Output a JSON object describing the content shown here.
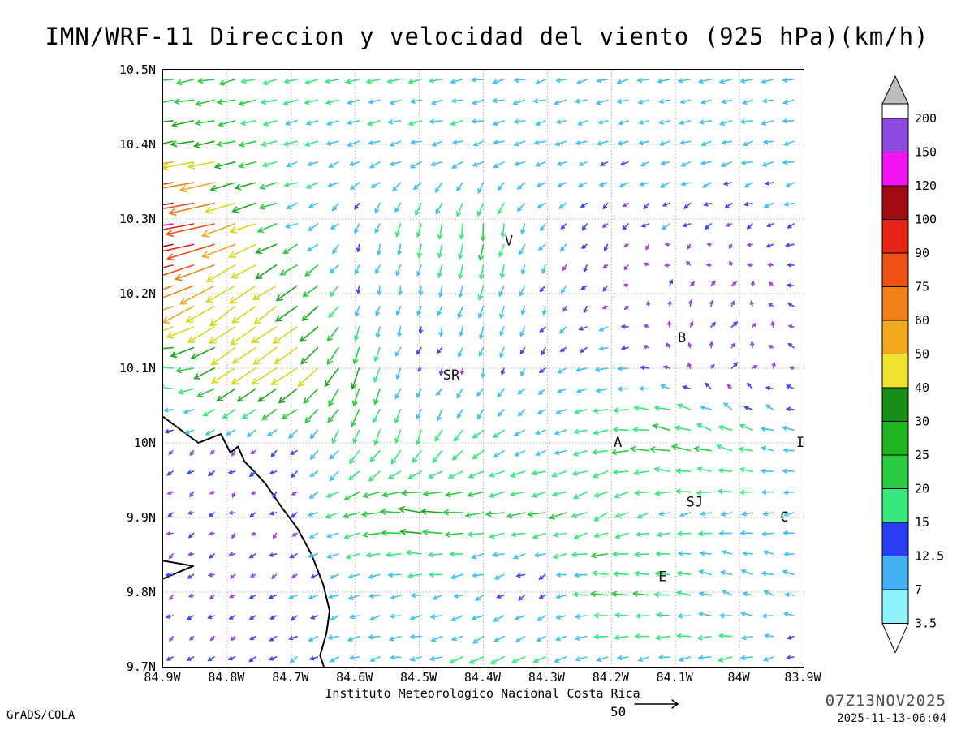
{
  "footer": {
    "institute": "Instituto Meteorologico Nacional Costa Rica",
    "credit": "GrADS/COLA",
    "valid_time": "07Z13NOV2025",
    "created": "2025-11-13-06:04",
    "ref_vector_label": "50"
  },
  "chart_data": {
    "type": "vector_field",
    "title": "IMN/WRF-11 Direccion y velocidad del viento (925 hPa)(km/h)",
    "units": "km/h",
    "level": "925 hPa",
    "lon_range": [
      -84.9,
      -83.9
    ],
    "lat_range": [
      9.7,
      10.5
    ],
    "lon_ticks": [
      "84.9W",
      "84.8W",
      "84.7W",
      "84.6W",
      "84.5W",
      "84.4W",
      "84.3W",
      "84.2W",
      "84.1W",
      "84W",
      "83.9W"
    ],
    "lat_ticks": [
      "10.5N",
      "10.4N",
      "10.3N",
      "10.2N",
      "10.1N",
      "10N",
      "9.9N",
      "9.8N",
      "9.7N"
    ],
    "grid": true,
    "reference_speed": 50,
    "stations": [
      {
        "label": "V",
        "lon": -84.36,
        "lat": 10.27
      },
      {
        "label": "B",
        "lon": -84.09,
        "lat": 10.14
      },
      {
        "label": "SR",
        "lon": -84.45,
        "lat": 10.09
      },
      {
        "label": "A",
        "lon": -84.19,
        "lat": 10.0
      },
      {
        "label": "SJ",
        "lon": -84.07,
        "lat": 9.92
      },
      {
        "label": "C",
        "lon": -83.93,
        "lat": 9.9
      },
      {
        "label": "E",
        "lon": -84.12,
        "lat": 9.82
      },
      {
        "label": "I",
        "lon": -83.9,
        "lat": 10.0
      }
    ],
    "colorbar": {
      "levels": [
        "3.5",
        "7",
        "12.5",
        "15",
        "20",
        "25",
        "30",
        "40",
        "50",
        "60",
        "75",
        "90",
        "100",
        "120",
        "150",
        "200"
      ],
      "band_colors": [
        "#8ff2ff",
        "#45b1f2",
        "#2a3df2",
        "#38e87d",
        "#2bcc42",
        "#21b321",
        "#178f17",
        "#f2e230",
        "#f2a81f",
        "#f28019",
        "#ed5214",
        "#e32417",
        "#a30b13",
        "#f214f2",
        "#8f4be0"
      ],
      "under_color": "#ffffff",
      "over_color": "#ffffff",
      "cap_color": "#bdbdbd"
    },
    "arrow_speed_colors": [
      {
        "lt": 5,
        "color": "#9a46df"
      },
      {
        "lt": 8,
        "color": "#3d4cf2"
      },
      {
        "lt": 14,
        "color": "#42c2ee"
      },
      {
        "lt": 19,
        "color": "#38e87d"
      },
      {
        "lt": 26,
        "color": "#2bcc42"
      },
      {
        "lt": 34,
        "color": "#1fa81f"
      },
      {
        "lt": 44,
        "color": "#d8d820"
      },
      {
        "lt": 55,
        "color": "#f2a81f"
      },
      {
        "lt": 68,
        "color": "#f28019"
      },
      {
        "lt": 85,
        "color": "#ed5214"
      },
      {
        "lt": 105,
        "color": "#e32417"
      },
      {
        "lt": 130,
        "color": "#a30b13"
      },
      {
        "lt": 160,
        "color": "#f214f2"
      },
      {
        "lt": 9999,
        "color": "#8f4be0"
      }
    ],
    "wind_field": {
      "lons": [
        -84.9,
        -84.8,
        -84.7,
        -84.6,
        -84.5,
        -84.4,
        -84.3,
        -84.2,
        -84.1,
        -84.0,
        -83.9
      ],
      "lats": [
        10.5,
        10.4,
        10.3,
        10.2,
        10.1,
        10.0,
        9.9,
        9.8,
        9.7
      ],
      "u": [
        [
          -22,
          -20,
          -15,
          -14,
          -13,
          -13,
          -12,
          -12,
          -12,
          -12,
          -12
        ],
        [
          -35,
          -22,
          -13,
          -12,
          -12,
          -11,
          -11,
          -9,
          -10,
          -11,
          -11
        ],
        [
          -130,
          -45,
          -12,
          -3,
          -4,
          -2,
          -6,
          -3,
          -6,
          -4,
          -7
        ],
        [
          -50,
          -35,
          -28,
          -2,
          -2,
          -5,
          -3,
          -3,
          2,
          3,
          -5
        ],
        [
          -18,
          -30,
          -32,
          -8,
          -3,
          -2,
          -5,
          -12,
          -4,
          4,
          -3
        ],
        [
          -4,
          -4,
          -6,
          -8,
          -6,
          -12,
          -10,
          -18,
          -25,
          -18,
          -12
        ],
        [
          -4,
          -3,
          -4,
          -20,
          -30,
          -22,
          -20,
          -15,
          -12,
          -13,
          -10
        ],
        [
          -4,
          -4,
          -6,
          -10,
          -11,
          -8,
          -4,
          -20,
          -18,
          -10,
          -11
        ],
        [
          -4,
          -4,
          -7,
          -11,
          -12,
          -15,
          -12,
          -12,
          -13,
          -16,
          -5
        ]
      ],
      "v": [
        [
          -3,
          -4,
          -4,
          -3,
          -3,
          -2,
          -3,
          -3,
          -2,
          -3,
          -2
        ],
        [
          -6,
          -5,
          -4,
          -4,
          -3,
          -3,
          -3,
          -3,
          -3,
          -3,
          -2
        ],
        [
          -20,
          -15,
          -5,
          -8,
          -16,
          -20,
          -6,
          -4,
          -4,
          -3,
          -3
        ],
        [
          -22,
          -25,
          -20,
          -8,
          -9,
          -15,
          -7,
          -3,
          5,
          4,
          2
        ],
        [
          3,
          -20,
          -22,
          -25,
          -3,
          -8,
          -5,
          -2,
          2,
          4,
          2
        ],
        [
          -3,
          -3,
          -5,
          -15,
          -18,
          -10,
          -4,
          -3,
          5,
          6,
          2
        ],
        [
          -2,
          -2,
          -3,
          -6,
          5,
          -3,
          -4,
          -8,
          -3,
          -2,
          -2
        ],
        [
          -2,
          -2,
          -3,
          -3,
          -2,
          -3,
          -3,
          3,
          2,
          5,
          3
        ],
        [
          -3,
          -3,
          -4,
          -3,
          -2,
          -8,
          -6,
          -3,
          -2,
          -3,
          -2
        ]
      ]
    },
    "coastlines": [
      [
        [
          -84.9,
          10.035
        ],
        [
          -84.845,
          10.0
        ],
        [
          -84.81,
          10.012
        ],
        [
          -84.795,
          9.987
        ],
        [
          -84.783,
          9.995
        ],
        [
          -84.773,
          9.975
        ],
        [
          -84.758,
          9.962
        ],
        [
          -84.74,
          9.945
        ],
        [
          -84.716,
          9.915
        ],
        [
          -84.69,
          9.885
        ],
        [
          -84.668,
          9.85
        ],
        [
          -84.65,
          9.81
        ],
        [
          -84.64,
          9.775
        ],
        [
          -84.645,
          9.745
        ],
        [
          -84.655,
          9.715
        ],
        [
          -84.649,
          9.7
        ]
      ],
      [
        [
          -84.9,
          9.842
        ],
        [
          -84.853,
          9.835
        ],
        [
          -84.9,
          9.818
        ]
      ]
    ]
  }
}
